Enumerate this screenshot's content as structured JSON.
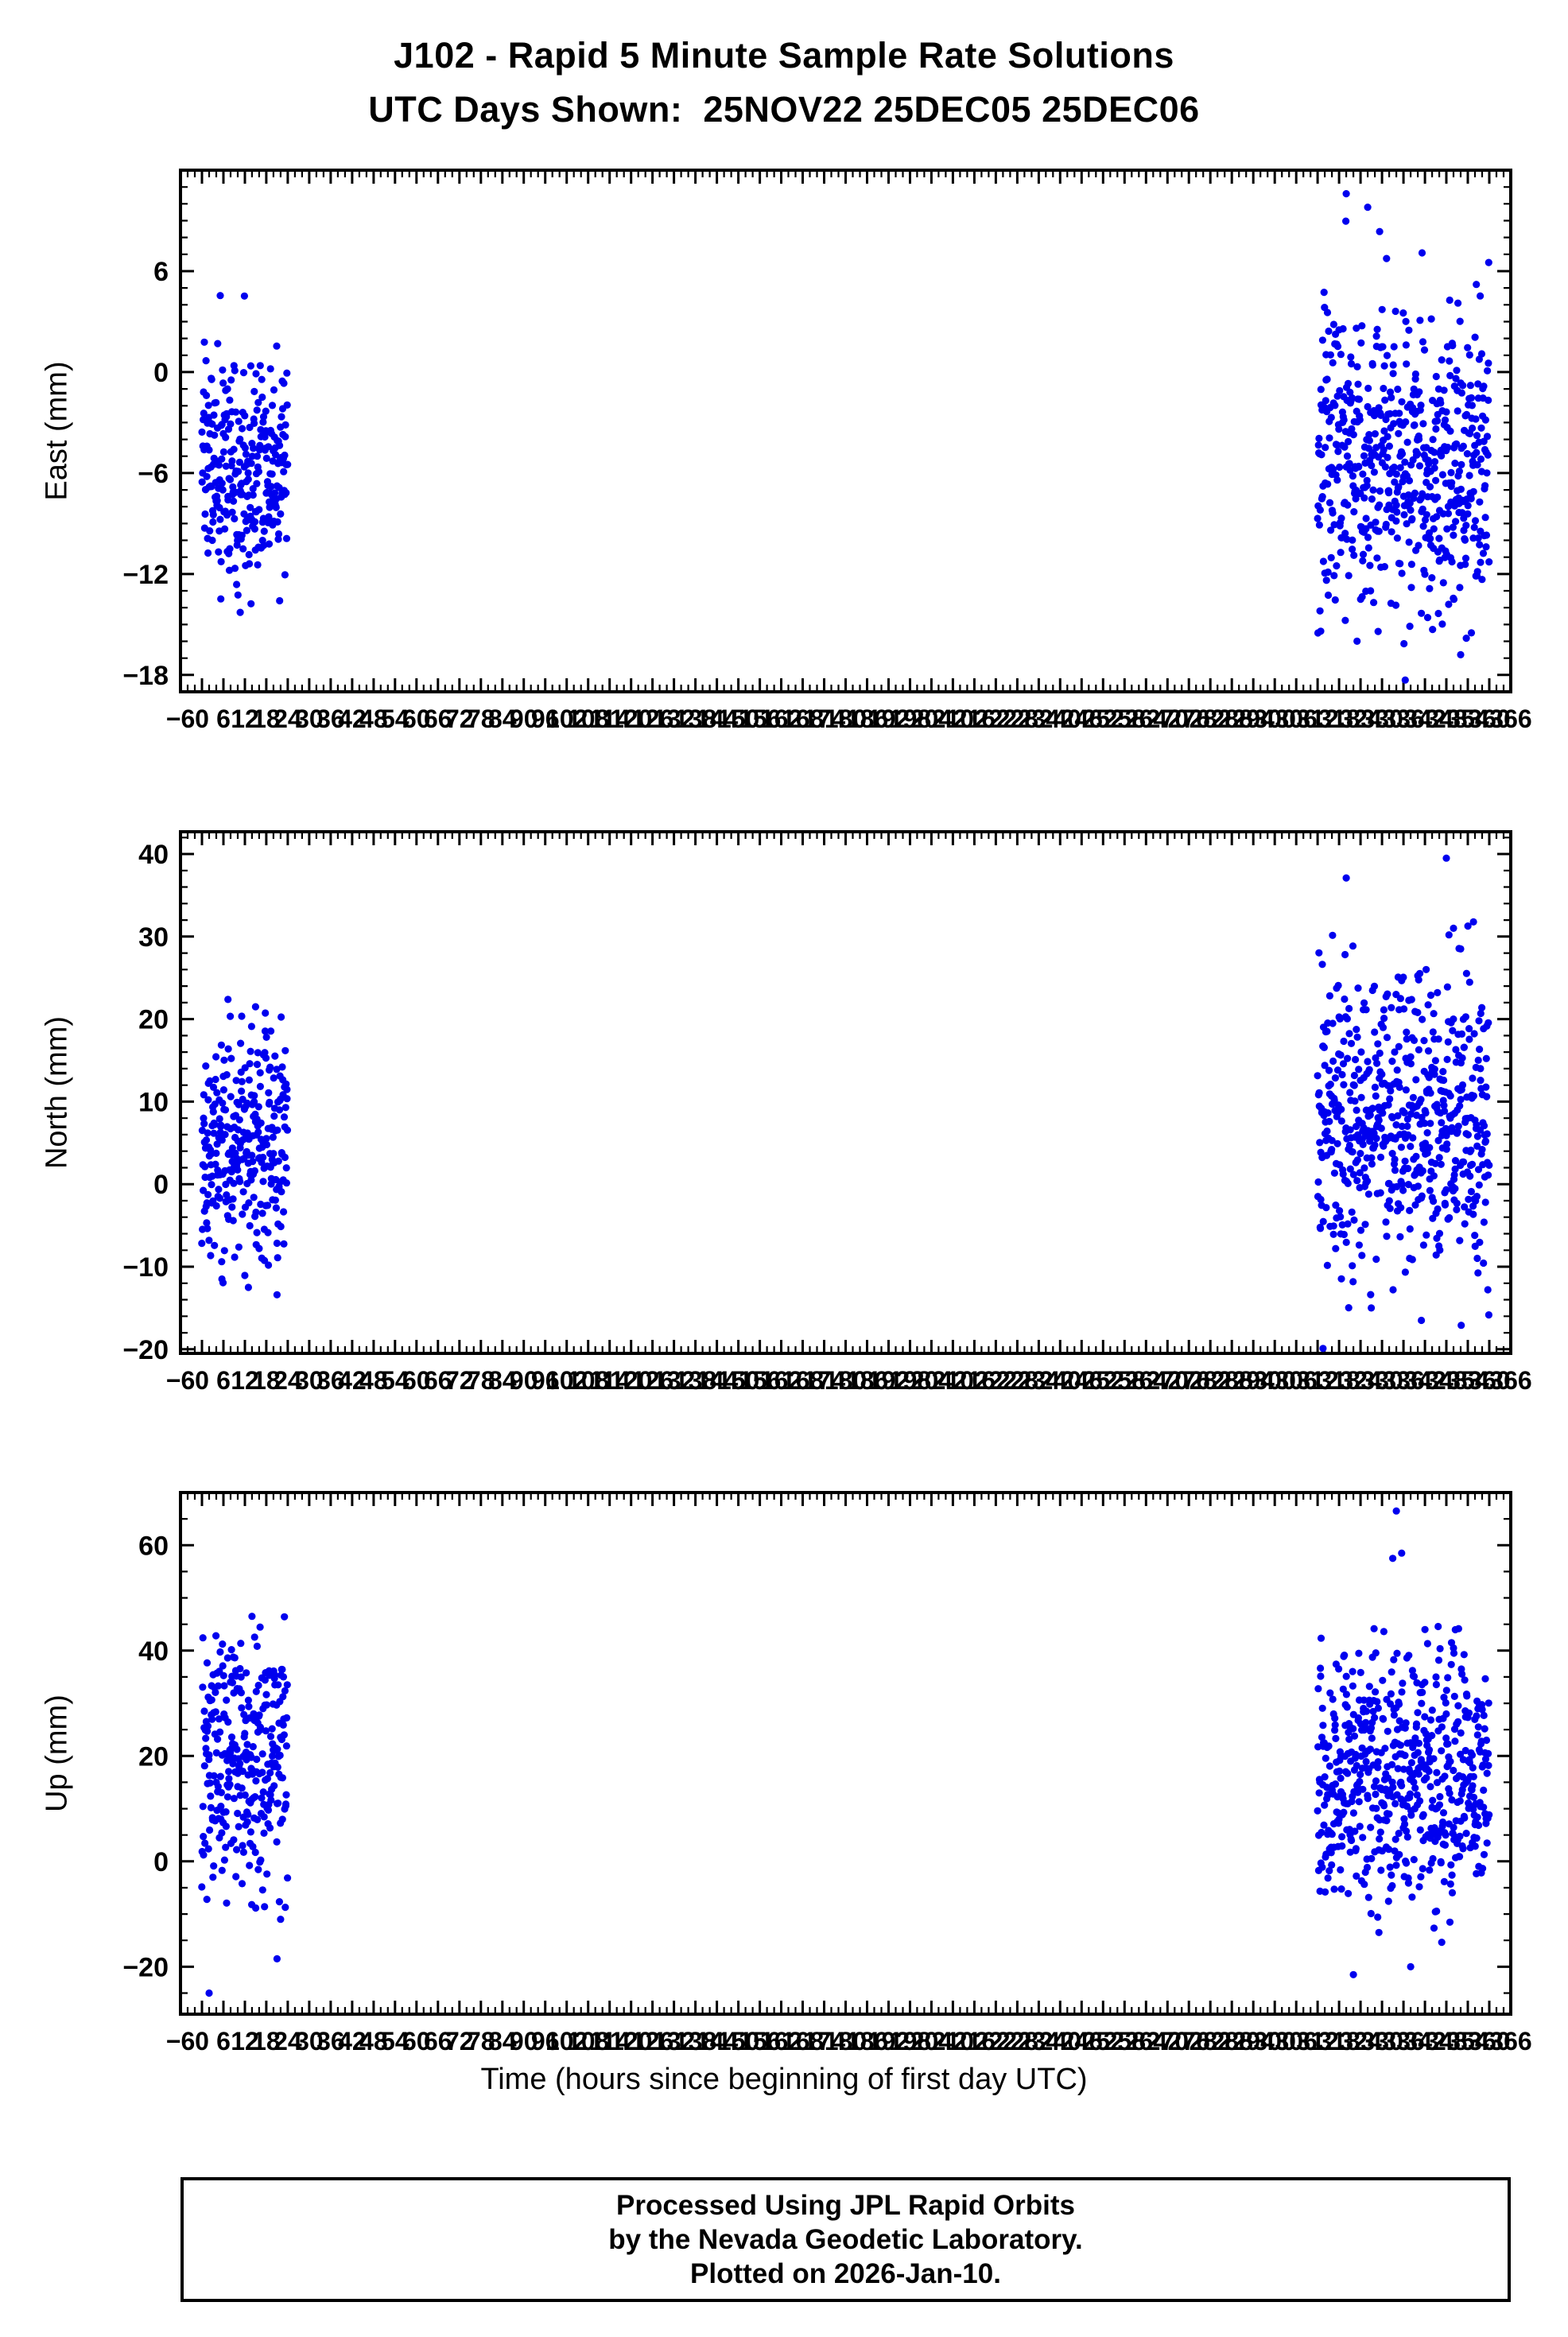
{
  "figure": {
    "title": "J102 - Rapid 5 Minute Sample Rate Solutions",
    "subtitle": "UTC Days Shown:  25NOV22 25DEC05 25DEC06",
    "footer_lines": [
      "Processed Using JPL Rapid Orbits",
      "by the Nevada Geodetic Laboratory.",
      "Plotted on 2026-Jan-10."
    ]
  },
  "style": {
    "point_color": "#0000EE",
    "frame_color": "#000000",
    "seed": 42
  },
  "chart_data": {
    "type": "scatter",
    "title": "J102 - Rapid 5 Minute Sample Rate Solutions",
    "subtitle": "UTC Days Shown:  25NOV22 25DEC05 25DEC06",
    "legend": "none",
    "grid": false,
    "x_axis": {
      "label": "Time (hours since beginning of first day UTC)",
      "min": -6,
      "max": 366,
      "major_tick_step": 6,
      "minor_tick_step": 2,
      "note": "major tick labels every 6 h from -6 to 366 overlap into a dense jumble"
    },
    "panels": [
      {
        "name": "east",
        "ylabel": "East (mm)",
        "ylim": [
          -19,
          12
        ],
        "yticks": [
          -18,
          -12,
          -6,
          0,
          6
        ],
        "yminor_step": 1,
        "clusters": [
          {
            "day": "25NOV22",
            "x_start": 0,
            "x_end": 24,
            "n": 288,
            "y_mean": -6.0,
            "y_std": 3.2,
            "y_min": -14.5,
            "y_max": 5.3,
            "outliers": []
          },
          {
            "day": "25DEC05 25DEC06",
            "x_start": 312,
            "x_end": 360,
            "n": 576,
            "y_mean": -5.6,
            "y_std": 4.3,
            "y_min": -17.0,
            "y_max": 9.2,
            "outliers": [
              [
                320,
                10.6
              ],
              [
                326,
                9.8
              ],
              [
                336.5,
                -18.3
              ],
              [
                352,
                -16.8
              ],
              [
                355,
                -15.5
              ]
            ]
          }
        ]
      },
      {
        "name": "north",
        "ylabel": "North (mm)",
        "ylim": [
          -20.5,
          42.7
        ],
        "yticks": [
          -20,
          -10,
          0,
          10,
          20,
          30,
          40
        ],
        "yminor_step": 2,
        "clusters": [
          {
            "day": "25NOV22",
            "x_start": 0,
            "x_end": 24,
            "n": 288,
            "y_mean": 4.5,
            "y_std": 6.5,
            "y_min": -13.5,
            "y_max": 23.0,
            "outliers": [
              [
                13,
                -12.5
              ],
              [
                15,
                21.5
              ],
              [
                21,
                -13.4
              ]
            ]
          },
          {
            "day": "25DEC05 25DEC06",
            "x_start": 312,
            "x_end": 360,
            "n": 576,
            "y_mean": 8.0,
            "y_std": 8.0,
            "y_min": -17.5,
            "y_max": 33.0,
            "outliers": [
              [
                320,
                37.1
              ],
              [
                348,
                39.5
              ],
              [
                350,
                31.0
              ],
              [
                313.5,
                -19.9
              ],
              [
                327,
                -15.0
              ],
              [
                341,
                -16.5
              ],
              [
                352,
                28.5
              ]
            ]
          }
        ]
      },
      {
        "name": "up",
        "ylabel": "Up (mm)",
        "ylim": [
          -29,
          70
        ],
        "yticks": [
          -20,
          0,
          20,
          40,
          60
        ],
        "yminor_step": 5,
        "clusters": [
          {
            "day": "25NOV22",
            "x_start": 0,
            "x_end": 24,
            "n": 288,
            "y_mean": 20.0,
            "y_std": 11.0,
            "y_min": -12.0,
            "y_max": 47.0,
            "outliers": [
              [
                21,
                -18.5
              ],
              [
                22,
                -11.0
              ],
              [
                14,
                46.5
              ],
              [
                2,
                -25.0
              ]
            ]
          },
          {
            "day": "25DEC05 25DEC06",
            "x_start": 312,
            "x_end": 360,
            "n": 576,
            "y_mean": 15.0,
            "y_std": 12.0,
            "y_min": -18.0,
            "y_max": 46.0,
            "outliers": [
              [
                334,
                66.5
              ],
              [
                333,
                57.5
              ],
              [
                335.5,
                58.5
              ],
              [
                342,
                44.0
              ],
              [
                350,
                40.5
              ],
              [
                322,
                -21.5
              ],
              [
                338,
                -20.0
              ]
            ]
          }
        ]
      }
    ]
  }
}
